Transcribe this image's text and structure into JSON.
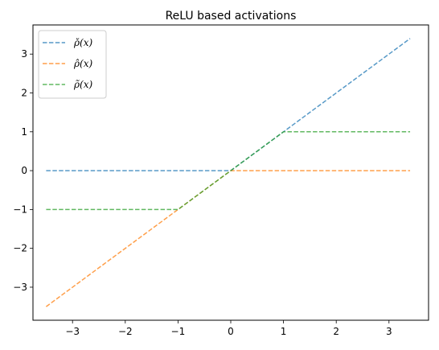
{
  "chart_data": {
    "type": "line",
    "title": "ReLU based activations",
    "xlabel": "",
    "ylabel": "",
    "xlim": [
      -3.75,
      3.75
    ],
    "ylim": [
      -3.85,
      3.75
    ],
    "xticks": [
      -3,
      -2,
      -1,
      0,
      1,
      2,
      3
    ],
    "yticks": [
      -3,
      -2,
      -1,
      0,
      1,
      2,
      3
    ],
    "xtick_labels": [
      "−3",
      "−2",
      "−1",
      "0",
      "1",
      "2",
      "3"
    ],
    "ytick_labels": [
      "−3",
      "−2",
      "−1",
      "0",
      "1",
      "2",
      "3"
    ],
    "grid": false,
    "legend_position": "upper-left",
    "series": [
      {
        "name": "ρ̌(x)",
        "color": "#1f77b4",
        "linestyle": "dashed",
        "x": [
          -3.5,
          0,
          3.4
        ],
        "y": [
          0,
          0,
          3.4
        ]
      },
      {
        "name": "ρ̂(x)",
        "color": "#ff7f0e",
        "linestyle": "dashed",
        "x": [
          -3.5,
          0,
          3.4
        ],
        "y": [
          -3.5,
          0,
          0
        ]
      },
      {
        "name": "ρ̃(x)",
        "color": "#2ca02c",
        "linestyle": "dashed",
        "x": [
          -3.5,
          -1,
          1,
          3.4
        ],
        "y": [
          -1,
          -1,
          1,
          1
        ]
      }
    ]
  }
}
